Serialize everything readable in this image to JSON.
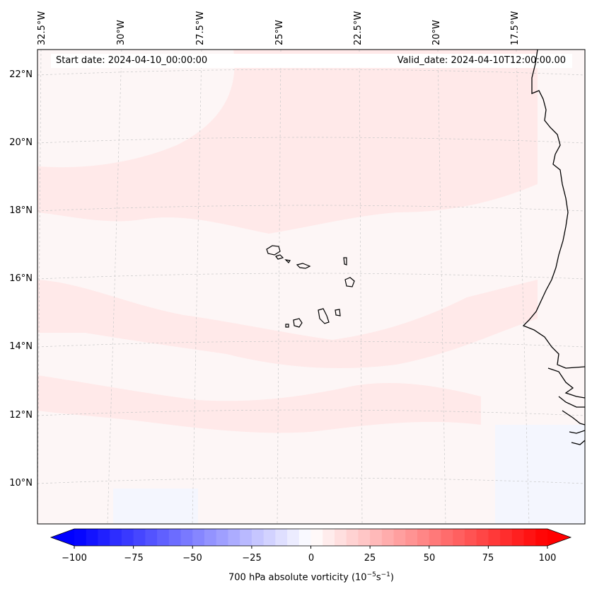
{
  "header": {
    "start_date": "Start date: 2024-04-10_00:00:00",
    "valid_date": "Valid_date: 2024-04-10T12:00:00.00"
  },
  "axes": {
    "longitude_labels": [
      "32.5°W",
      "30°W",
      "27.5°W",
      "25°W",
      "22.5°W",
      "20°W",
      "17.5°W"
    ],
    "latitude_labels": [
      "22°N",
      "20°N",
      "18°N",
      "16°N",
      "14°N",
      "12°N",
      "10°N"
    ]
  },
  "colorbar": {
    "ticks": [
      "−100",
      "−75",
      "−50",
      "−25",
      "0",
      "25",
      "50",
      "75",
      "100"
    ],
    "label_main": "700 hPa absolute vorticity (10",
    "label_exp1": "−5",
    "label_mid": "s",
    "label_exp2": "−1",
    "label_end": ")",
    "min_value": -100,
    "max_value": 100,
    "n_bins": 40,
    "neg_color": "#0000ff",
    "pos_color": "#ff0000"
  },
  "map": {
    "field": "700 hPa absolute vorticity",
    "background_color": "#fdf6f6",
    "band_color": "#ffe8e8",
    "coastline_color": "#000000",
    "gridline_color": "#c8c8c8"
  }
}
